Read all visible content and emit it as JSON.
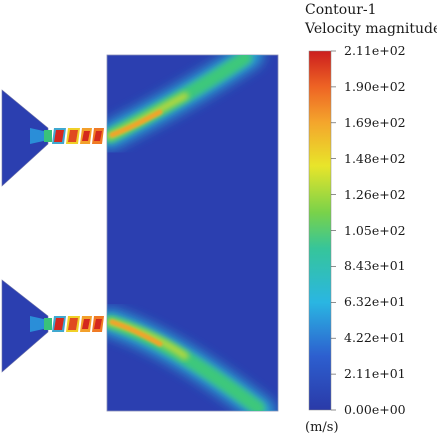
{
  "legend": {
    "title_line1": "Contour-1",
    "title_line2": "Velocity magnitude",
    "units": "(m/s)",
    "min": 0,
    "max": 211,
    "tick_labels": [
      "2.11e+02",
      "1.90e+02",
      "1.69e+02",
      "1.48e+02",
      "1.26e+02",
      "1.05e+02",
      "8.43e+01",
      "6.32e+01",
      "4.22e+01",
      "2.11e+01",
      "0.00e+00"
    ]
  },
  "colors": {
    "background_field": "#2b3fb0",
    "colormap": [
      "#2a3aa8",
      "#2d6fd8",
      "#2ec6e0",
      "#3cc86a",
      "#a8d83a",
      "#f2e224",
      "#f39a2a",
      "#d4281e"
    ]
  }
}
